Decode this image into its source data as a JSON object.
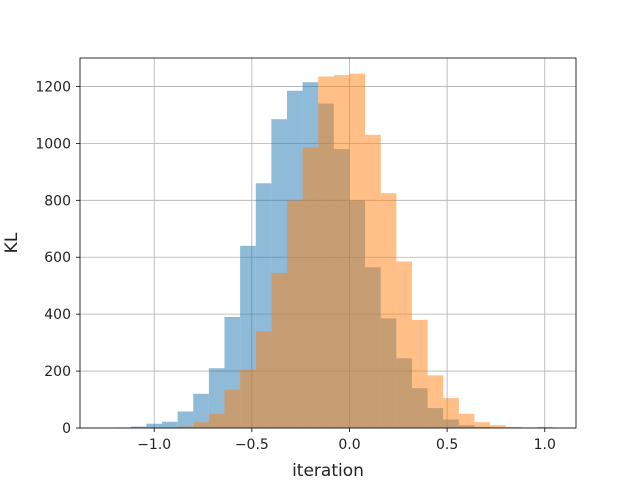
{
  "chart_data": {
    "type": "bar",
    "title": "",
    "xlabel": "iteration",
    "ylabel": "KL",
    "xlim": [
      -1.38,
      1.16
    ],
    "ylim": [
      0,
      1300
    ],
    "grid": true,
    "xticks": [
      -1.0,
      -0.5,
      0.0,
      0.5,
      1.0
    ],
    "xtick_labels": [
      "−1.0",
      "−0.5",
      "0.0",
      "0.5",
      "1.0"
    ],
    "yticks": [
      0,
      200,
      400,
      600,
      800,
      1000,
      1200
    ],
    "ytick_labels": [
      "0",
      "200",
      "400",
      "600",
      "800",
      "1000",
      "1200"
    ],
    "series": [
      {
        "color": "#1f77b4",
        "opacity": 0.5,
        "bin_edges": [
          -1.2,
          -1.12,
          -1.04,
          -0.96,
          -0.88,
          -0.8,
          -0.72,
          -0.64,
          -0.56,
          -0.48,
          -0.4,
          -0.32,
          -0.24,
          -0.16,
          -0.08,
          0.0,
          0.08,
          0.16,
          0.24,
          0.32,
          0.4,
          0.48,
          0.56,
          0.64,
          0.72,
          0.8,
          0.88
        ],
        "values": [
          2,
          5,
          15,
          22,
          58,
          120,
          210,
          390,
          640,
          860,
          1085,
          1185,
          1215,
          1140,
          980,
          800,
          565,
          385,
          245,
          140,
          70,
          30,
          10,
          4,
          2,
          1
        ]
      },
      {
        "color": "#ff7f0e",
        "opacity": 0.5,
        "bin_edges": [
          -0.96,
          -0.88,
          -0.8,
          -0.72,
          -0.64,
          -0.56,
          -0.48,
          -0.4,
          -0.32,
          -0.24,
          -0.16,
          -0.08,
          0.0,
          0.08,
          0.16,
          0.24,
          0.32,
          0.4,
          0.48,
          0.56,
          0.64,
          0.72,
          0.8,
          0.88,
          0.96,
          1.04
        ],
        "values": [
          2,
          5,
          20,
          50,
          135,
          205,
          340,
          545,
          800,
          985,
          1235,
          1240,
          1245,
          1030,
          825,
          585,
          380,
          185,
          105,
          50,
          20,
          10,
          4,
          2,
          4
        ]
      }
    ]
  }
}
